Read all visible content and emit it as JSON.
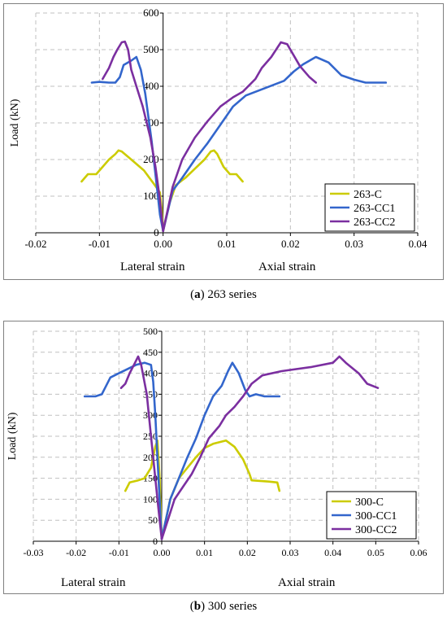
{
  "charts": {
    "a": {
      "caption": {
        "letter": "a",
        "text": " 263 series"
      },
      "lateral_label": "Lateral strain",
      "axial_label": "Axial strain"
    },
    "b": {
      "caption": {
        "letter": "b",
        "text": " 300 series"
      },
      "lateral_label": "Lateral strain",
      "axial_label": "Axial strain"
    }
  },
  "colors": {
    "C": "#cccc00",
    "CC1": "#3366cc",
    "CC2": "#7b2fa0",
    "grid": "#c0c0c0"
  },
  "chart_data": [
    {
      "type": "line",
      "title": "263 series",
      "xlabel": "Lateral strain / Axial strain",
      "ylabel": "Load (kN)",
      "xlim": [
        -0.02,
        0.04
      ],
      "ylim": [
        0,
        600
      ],
      "xticks": [
        -0.02,
        -0.01,
        0.0,
        0.01,
        0.02,
        0.03,
        0.04
      ],
      "xtick_labels": [
        "-0.02",
        "-0.01",
        "0.00",
        "0.01",
        "0.02",
        "0.03",
        "0.04"
      ],
      "yticks": [
        0,
        100,
        200,
        300,
        400,
        500,
        600
      ],
      "ytick_labels": [
        "0",
        "100",
        "200",
        "300",
        "400",
        "500",
        "600"
      ],
      "grid": true,
      "legend_position": "bottom-right",
      "series": [
        {
          "name": "263-C",
          "color_key": "C",
          "lateral": [
            [
              -0.0128,
              140
            ],
            [
              -0.0118,
              160
            ],
            [
              -0.0105,
              160
            ],
            [
              -0.0095,
              180
            ],
            [
              -0.0085,
              200
            ],
            [
              -0.0075,
              215
            ],
            [
              -0.007,
              225
            ],
            [
              -0.0065,
              222
            ],
            [
              -0.005,
              200
            ],
            [
              -0.003,
              170
            ],
            [
              -0.0015,
              135
            ],
            [
              -0.0005,
              110
            ],
            [
              -0.0002,
              60
            ],
            [
              0,
              5
            ]
          ],
          "axial": [
            [
              0,
              5
            ],
            [
              0.001,
              80
            ],
            [
              0.002,
              130
            ],
            [
              0.0035,
              150
            ],
            [
              0.005,
              175
            ],
            [
              0.0065,
              200
            ],
            [
              0.0075,
              222
            ],
            [
              0.008,
              225
            ],
            [
              0.0085,
              215
            ],
            [
              0.0095,
              180
            ],
            [
              0.0105,
              160
            ],
            [
              0.0115,
              160
            ],
            [
              0.0125,
              140
            ]
          ]
        },
        {
          "name": "263-CC1",
          "color_key": "CC1",
          "lateral": [
            [
              -0.0112,
              410
            ],
            [
              -0.01,
              412
            ],
            [
              -0.0085,
              410
            ],
            [
              -0.0075,
              410
            ],
            [
              -0.0068,
              425
            ],
            [
              -0.0062,
              458
            ],
            [
              -0.005,
              470
            ],
            [
              -0.0042,
              480
            ],
            [
              -0.0035,
              445
            ],
            [
              -0.0028,
              380
            ],
            [
              -0.0018,
              250
            ],
            [
              -0.001,
              130
            ],
            [
              -0.0005,
              50
            ],
            [
              0,
              5
            ]
          ],
          "axial": [
            [
              0,
              5
            ],
            [
              0.0015,
              115
            ],
            [
              0.003,
              150
            ],
            [
              0.005,
              200
            ],
            [
              0.007,
              245
            ],
            [
              0.009,
              295
            ],
            [
              0.011,
              345
            ],
            [
              0.013,
              375
            ],
            [
              0.016,
              395
            ],
            [
              0.019,
              415
            ],
            [
              0.0205,
              440
            ],
            [
              0.022,
              460
            ],
            [
              0.024,
              480
            ],
            [
              0.026,
              465
            ],
            [
              0.028,
              430
            ],
            [
              0.03,
              418
            ],
            [
              0.0318,
              410
            ],
            [
              0.035,
              410
            ]
          ]
        },
        {
          "name": "263-CC2",
          "color_key": "CC2",
          "lateral": [
            [
              -0.0095,
              420
            ],
            [
              -0.0085,
              450
            ],
            [
              -0.0078,
              480
            ],
            [
              -0.0072,
              500
            ],
            [
              -0.0065,
              520
            ],
            [
              -0.006,
              522
            ],
            [
              -0.0055,
              500
            ],
            [
              -0.005,
              445
            ],
            [
              -0.0042,
              400
            ],
            [
              -0.0032,
              345
            ],
            [
              -0.002,
              260
            ],
            [
              -0.0012,
              180
            ],
            [
              -0.0005,
              90
            ],
            [
              0,
              5
            ]
          ],
          "axial": [
            [
              0,
              5
            ],
            [
              0.0015,
              125
            ],
            [
              0.003,
              200
            ],
            [
              0.005,
              260
            ],
            [
              0.007,
              305
            ],
            [
              0.009,
              345
            ],
            [
              0.011,
              370
            ],
            [
              0.0125,
              385
            ],
            [
              0.0145,
              420
            ],
            [
              0.0155,
              450
            ],
            [
              0.017,
              480
            ],
            [
              0.0185,
              520
            ],
            [
              0.0195,
              515
            ],
            [
              0.0215,
              455
            ],
            [
              0.023,
              425
            ],
            [
              0.024,
              410
            ]
          ]
        }
      ]
    },
    {
      "type": "line",
      "title": "300 series",
      "xlabel": "Lateral strain / Axial strain",
      "ylabel": "Load (kN)",
      "xlim": [
        -0.03,
        0.06
      ],
      "ylim": [
        0,
        500
      ],
      "xticks": [
        -0.03,
        -0.02,
        -0.01,
        0.0,
        0.01,
        0.02,
        0.03,
        0.04,
        0.05,
        0.06
      ],
      "xtick_labels": [
        "-0.03",
        "-0.02",
        "-0.01",
        "0.00",
        "0.01",
        "0.02",
        "0.03",
        "0.04",
        "0.05",
        "0.06"
      ],
      "yticks": [
        0,
        50,
        100,
        150,
        200,
        250,
        300,
        350,
        400,
        450,
        500
      ],
      "ytick_labels": [
        "0",
        "50",
        "100",
        "150",
        "200",
        "250",
        "300",
        "350",
        "400",
        "450",
        "500"
      ],
      "grid": true,
      "legend_position": "bottom-right",
      "series": [
        {
          "name": "300-C",
          "color_key": "C",
          "lateral": [
            [
              -0.0085,
              120
            ],
            [
              -0.0075,
              140
            ],
            [
              -0.0055,
              145
            ],
            [
              -0.004,
              150
            ],
            [
              -0.0025,
              175
            ],
            [
              -0.0015,
              225
            ],
            [
              -0.001,
              240
            ],
            [
              -0.0005,
              150
            ],
            [
              0,
              5
            ]
          ],
          "axial": [
            [
              0,
              5
            ],
            [
              0.002,
              100
            ],
            [
              0.004,
              150
            ],
            [
              0.006,
              175
            ],
            [
              0.008,
              200
            ],
            [
              0.01,
              222
            ],
            [
              0.012,
              232
            ],
            [
              0.015,
              240
            ],
            [
              0.017,
              225
            ],
            [
              0.019,
              195
            ],
            [
              0.0205,
              160
            ],
            [
              0.021,
              145
            ],
            [
              0.025,
              142
            ],
            [
              0.027,
              140
            ],
            [
              0.0275,
              120
            ]
          ]
        },
        {
          "name": "300-CC1",
          "color_key": "CC1",
          "lateral": [
            [
              -0.018,
              345
            ],
            [
              -0.0155,
              345
            ],
            [
              -0.014,
              350
            ],
            [
              -0.012,
              390
            ],
            [
              -0.01,
              400
            ],
            [
              -0.008,
              410
            ],
            [
              -0.006,
              420
            ],
            [
              -0.004,
              425
            ],
            [
              -0.0025,
              420
            ],
            [
              -0.002,
              380
            ],
            [
              -0.0015,
              300
            ],
            [
              -0.001,
              200
            ],
            [
              -0.0005,
              100
            ],
            [
              0,
              5
            ]
          ],
          "axial": [
            [
              0,
              5
            ],
            [
              0.002,
              100
            ],
            [
              0.004,
              150
            ],
            [
              0.006,
              200
            ],
            [
              0.008,
              245
            ],
            [
              0.01,
              300
            ],
            [
              0.012,
              345
            ],
            [
              0.014,
              370
            ],
            [
              0.0155,
              405
            ],
            [
              0.0165,
              425
            ],
            [
              0.018,
              400
            ],
            [
              0.0195,
              360
            ],
            [
              0.0205,
              345
            ],
            [
              0.022,
              350
            ],
            [
              0.024,
              345
            ],
            [
              0.0275,
              345
            ]
          ]
        },
        {
          "name": "300-CC2",
          "color_key": "CC2",
          "lateral": [
            [
              -0.0095,
              365
            ],
            [
              -0.0085,
              375
            ],
            [
              -0.0075,
              400
            ],
            [
              -0.0065,
              420
            ],
            [
              -0.0055,
              440
            ],
            [
              -0.0048,
              420
            ],
            [
              -0.0035,
              350
            ],
            [
              -0.0025,
              250
            ],
            [
              -0.0015,
              150
            ],
            [
              -0.0008,
              80
            ],
            [
              0,
              5
            ]
          ],
          "axial": [
            [
              0,
              5
            ],
            [
              0.003,
              100
            ],
            [
              0.005,
              130
            ],
            [
              0.007,
              160
            ],
            [
              0.009,
              200
            ],
            [
              0.011,
              245
            ],
            [
              0.0135,
              275
            ],
            [
              0.015,
              300
            ],
            [
              0.017,
              320
            ],
            [
              0.019,
              345
            ],
            [
              0.021,
              375
            ],
            [
              0.0235,
              395
            ],
            [
              0.028,
              405
            ],
            [
              0.035,
              415
            ],
            [
              0.04,
              425
            ],
            [
              0.0415,
              440
            ],
            [
              0.043,
              425
            ],
            [
              0.046,
              400
            ],
            [
              0.048,
              375
            ],
            [
              0.0505,
              365
            ]
          ]
        }
      ]
    }
  ]
}
